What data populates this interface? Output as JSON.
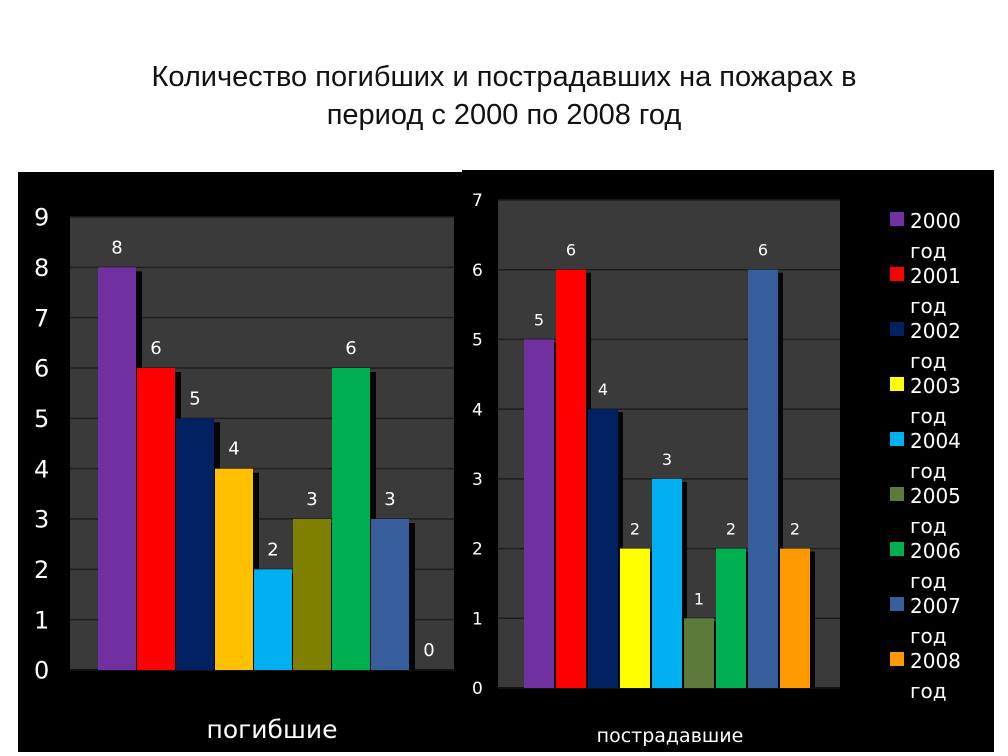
{
  "title_line1": "Количество погибших и пострадавших на пожарах в",
  "title_line2": "период с 2000 по 2008 год",
  "legend": [
    {
      "label": "2000 год",
      "color": "#7030A0"
    },
    {
      "label": "2001 год",
      "color": "#FF0000"
    },
    {
      "label": "2002 год",
      "color": "#002060"
    },
    {
      "label": "2003 год",
      "color": "#FFFF00"
    },
    {
      "label": "2004 год",
      "color": "#00B0F0"
    },
    {
      "label": "2005 год",
      "color": "#5E7A3A"
    },
    {
      "label": "2006 год",
      "color": "#00B050"
    },
    {
      "label": "2007 год",
      "color": "#355E9A"
    },
    {
      "label": "2008 год",
      "color": "#FF9900"
    }
  ],
  "chart_data": [
    {
      "type": "bar",
      "xlabel": "погибшие",
      "ylim": [
        0,
        9
      ],
      "yticks": [
        0,
        1,
        2,
        3,
        4,
        5,
        6,
        7,
        8,
        9
      ],
      "grid": true,
      "legend": false,
      "series": [
        {
          "name": "2000 год",
          "value": 8,
          "color": "#7030A0"
        },
        {
          "name": "2001 год",
          "value": 6,
          "color": "#FF0000"
        },
        {
          "name": "2002 год",
          "value": 5,
          "color": "#002060"
        },
        {
          "name": "2003 год",
          "value": 4,
          "color": "#FFC000"
        },
        {
          "name": "2004 год",
          "value": 2,
          "color": "#00B0F0"
        },
        {
          "name": "2005 год",
          "value": 3,
          "color": "#808000"
        },
        {
          "name": "2006 год",
          "value": 6,
          "color": "#00B050"
        },
        {
          "name": "2007 год",
          "value": 3,
          "color": "#355E9A"
        },
        {
          "name": "2008 год",
          "value": 0,
          "color": "#FF9900"
        }
      ]
    },
    {
      "type": "bar",
      "xlabel": "пострадавшие",
      "ylim": [
        0,
        7
      ],
      "yticks": [
        0,
        1,
        2,
        3,
        4,
        5,
        6,
        7
      ],
      "grid": true,
      "legend": "right",
      "series": [
        {
          "name": "2000 год",
          "value": 5,
          "color": "#7030A0"
        },
        {
          "name": "2001 год",
          "value": 6,
          "color": "#FF0000"
        },
        {
          "name": "2002 год",
          "value": 4,
          "color": "#002060"
        },
        {
          "name": "2003 год",
          "value": 2,
          "color": "#FFFF00"
        },
        {
          "name": "2004 год",
          "value": 3,
          "color": "#00B0F0"
        },
        {
          "name": "2005 год",
          "value": 1,
          "color": "#5E7A3A"
        },
        {
          "name": "2006 год",
          "value": 2,
          "color": "#00B050"
        },
        {
          "name": "2007 год",
          "value": 6,
          "color": "#355E9A"
        },
        {
          "name": "2008 год",
          "value": 2,
          "color": "#FF9900"
        }
      ]
    }
  ]
}
